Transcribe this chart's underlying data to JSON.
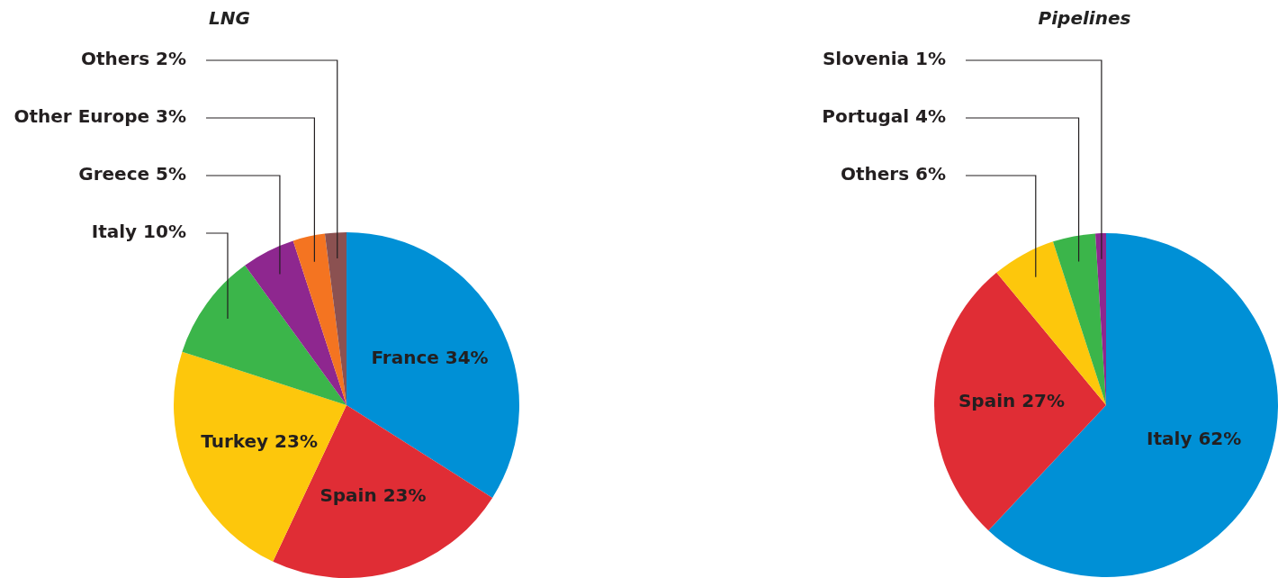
{
  "chart_data": [
    {
      "type": "pie",
      "title": "LNG",
      "categories": [
        "France",
        "Spain",
        "Turkey",
        "Italy",
        "Greece",
        "Other Europe",
        "Others"
      ],
      "values": [
        34,
        23,
        23,
        10,
        5,
        3,
        2
      ],
      "value_labels": [
        "34%",
        "23%",
        "23%",
        "10%",
        "5%",
        "3%",
        "2%"
      ],
      "colors": [
        "#0090d6",
        "#e02d35",
        "#fdc70c",
        "#3bb54a",
        "#8e278f",
        "#f47421",
        "#8b5151"
      ],
      "legend": false
    },
    {
      "type": "pie",
      "title": "Pipelines",
      "categories": [
        "Italy",
        "Spain",
        "Others",
        "Portugal",
        "Slovenia"
      ],
      "values": [
        62,
        27,
        6,
        4,
        1
      ],
      "value_labels": [
        "62%",
        "27%",
        "6%",
        "4%",
        "1%"
      ],
      "colors": [
        "#0090d6",
        "#e02d35",
        "#fdc70c",
        "#3bb54a",
        "#8e278f"
      ],
      "legend": false
    }
  ]
}
